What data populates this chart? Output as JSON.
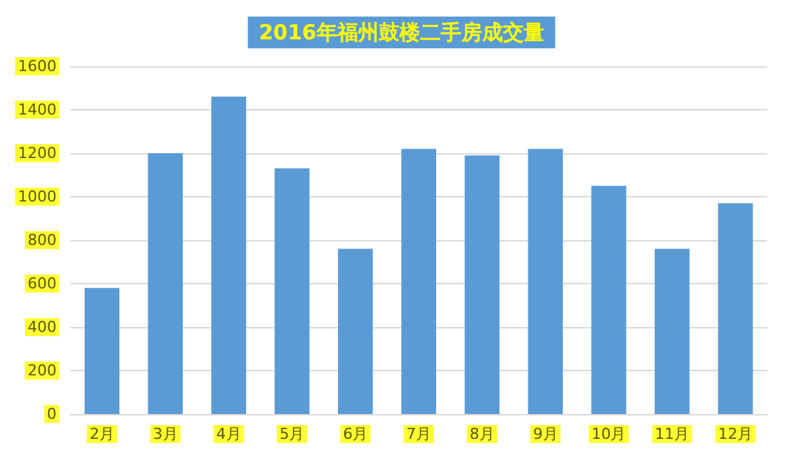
{
  "chart_data": {
    "type": "bar",
    "title": "2016年福州鼓楼二手房成交量",
    "categories": [
      "2月",
      "3月",
      "4月",
      "5月",
      "6月",
      "7月",
      "8月",
      "9月",
      "10月",
      "11月",
      "12月"
    ],
    "values": [
      580,
      1200,
      1460,
      1130,
      760,
      1220,
      1190,
      1220,
      1050,
      760,
      970
    ],
    "color": "#5b9bd5",
    "ylim": [
      0,
      1600
    ],
    "yticks": [
      0,
      200,
      400,
      600,
      800,
      1000,
      1200,
      1400,
      1600
    ],
    "grid": "y"
  }
}
